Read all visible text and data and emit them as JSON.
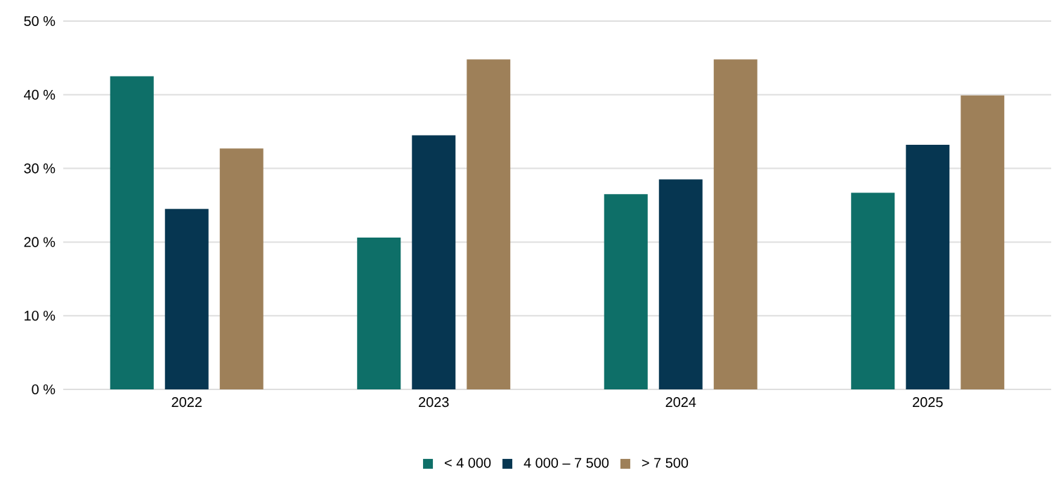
{
  "chart_data": {
    "type": "bar",
    "categories": [
      "2022",
      "2023",
      "2024",
      "2025"
    ],
    "series": [
      {
        "name": "< 4 000",
        "color": "#0e6f68",
        "values": [
          42.5,
          20.6,
          26.5,
          26.7
        ]
      },
      {
        "name": "4 000 – 7 500",
        "color": "#063651",
        "values": [
          24.5,
          34.5,
          28.5,
          33.2
        ]
      },
      {
        "name": "> 7 500",
        "color": "#9e8059",
        "values": [
          32.7,
          44.8,
          44.8,
          39.9
        ]
      }
    ],
    "ylim": [
      0,
      50
    ],
    "yticks": [
      {
        "value": 0,
        "label": "0 %"
      },
      {
        "value": 10,
        "label": "10 %"
      },
      {
        "value": 20,
        "label": "20 %"
      },
      {
        "value": 30,
        "label": "30 %"
      },
      {
        "value": 40,
        "label": "40 %"
      },
      {
        "value": 50,
        "label": "50 %"
      }
    ],
    "grid": "y",
    "legend": "bottom"
  }
}
